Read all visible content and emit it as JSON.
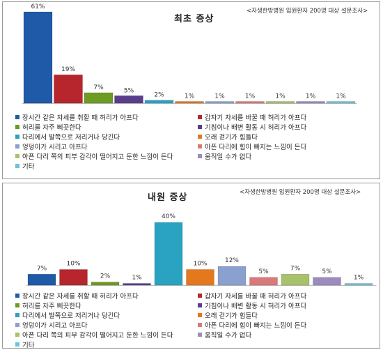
{
  "series_colors": [
    "#1f5aa8",
    "#b8262d",
    "#6e9b22",
    "#5a3e8d",
    "#2aa3c3",
    "#e4781c",
    "#8aa0cf",
    "#d9797a",
    "#a7c26a",
    "#9b8bbf",
    "#6ec3d9"
  ],
  "legend_labels": [
    "장시간 같은 자세를 취할 때 허리가 아프다",
    "갑자기 자세를 바꿀 때 허리가 아프다",
    "허리를 자주 삐끗한다",
    "기침이나 배변 활동 시 허리가 아프다",
    "다리에서 발쪽으로 저리거나 당긴다",
    "오래 걷기가 힘들다",
    "엉덩이가 시리고 아프다",
    "아픈 다리에 힘이 빠지는 느낌이 든다",
    "아픈 다리 쪽의 피부 감각이 떨어지고 둔한 느낌이 든다",
    "움직일 수가 없다",
    "기타"
  ],
  "chart_data": [
    {
      "type": "bar",
      "title": "최초 증상",
      "source_note": "<자생한방병원 입원환자 200명 대상 설문조사>",
      "values": [
        61,
        19,
        7,
        5,
        2,
        1,
        1,
        1,
        1,
        1,
        1
      ],
      "value_labels": [
        "61%",
        "19%",
        "7%",
        "5%",
        "2%",
        "1%",
        "1%",
        "1%",
        "1%",
        "1%",
        "1%"
      ],
      "ylim": [
        0,
        65
      ],
      "grid": false,
      "legend_position": "bottom"
    },
    {
      "type": "bar",
      "title": "내원 증상",
      "source_note": "<자생한방병원 입원환자 200명 대상 설문조사>",
      "values": [
        7,
        10,
        2,
        1,
        40,
        10,
        12,
        5,
        7,
        5,
        1
      ],
      "value_labels": [
        "7%",
        "10%",
        "2%",
        "1%",
        "40%",
        "10%",
        "12%",
        "5%",
        "7%",
        "5%",
        "1%"
      ],
      "ylim": [
        0,
        45
      ],
      "grid": false,
      "legend_position": "bottom"
    }
  ]
}
